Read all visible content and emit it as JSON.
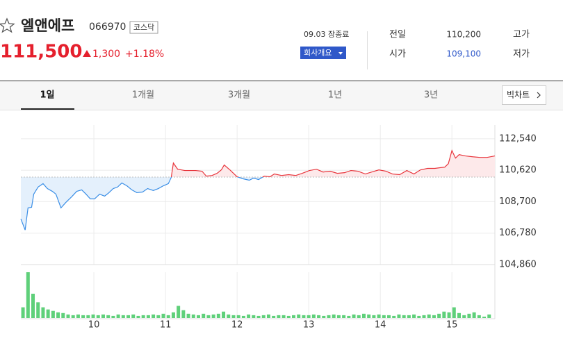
{
  "header": {
    "name": "엘앤에프",
    "code": "066970",
    "market": "코스닥",
    "price": "111,500",
    "change": "1,300",
    "change_rate": "+1.18%",
    "time": "09.03 장종료",
    "company_button": "회사개요",
    "info": [
      {
        "label": "전일",
        "value": "110,200"
      },
      {
        "label": "고가",
        "value": ""
      },
      {
        "label": "시가",
        "value": "109,100"
      },
      {
        "label": "저가",
        "value": ""
      }
    ]
  },
  "tabs": [
    "1일",
    "1개월",
    "3개월",
    "1년",
    "3년"
  ],
  "big_chart": "빅차트",
  "chart_data": {
    "type": "line",
    "x": [
      8.98,
      9.04,
      9.08,
      9.13,
      9.16,
      9.22,
      9.29,
      9.35,
      9.42,
      9.47,
      9.54,
      9.61,
      9.69,
      9.76,
      9.83,
      9.89,
      9.95,
      10.01,
      10.08,
      10.15,
      10.2,
      10.27,
      10.33,
      10.39,
      10.46,
      10.53,
      10.6,
      10.68,
      10.75,
      10.83,
      10.9,
      10.97,
      11.04,
      11.08,
      11.11,
      11.17,
      11.27,
      11.42,
      11.51,
      11.57,
      11.65,
      11.72,
      11.78,
      11.82,
      11.9,
      12.0,
      12.09,
      12.17,
      12.23,
      12.3,
      12.38,
      12.46,
      12.52,
      12.62,
      12.72,
      12.82,
      12.91,
      13.01,
      13.11,
      13.2,
      13.3,
      13.4,
      13.5,
      13.59,
      13.69,
      13.79,
      13.88,
      13.98,
      14.08,
      14.17,
      14.27,
      14.37,
      14.47,
      14.56,
      14.66,
      14.76,
      14.9,
      14.95,
      15.0,
      15.05,
      15.1,
      15.19,
      15.29,
      15.39,
      15.49,
      15.6
    ],
    "values": [
      107650,
      106970,
      108320,
      108360,
      109160,
      109590,
      109800,
      109500,
      109330,
      109160,
      108320,
      108660,
      109000,
      109330,
      109420,
      109160,
      108870,
      108870,
      109160,
      109040,
      109210,
      109500,
      109590,
      109840,
      109670,
      109420,
      109250,
      109290,
      109500,
      109380,
      109500,
      109670,
      109800,
      110180,
      111060,
      110680,
      110600,
      110600,
      110560,
      110260,
      110300,
      110430,
      110640,
      110940,
      110640,
      110220,
      110090,
      110010,
      110140,
      110050,
      110260,
      110220,
      110390,
      110300,
      110350,
      110300,
      110430,
      110600,
      110680,
      110510,
      110560,
      110430,
      110470,
      110600,
      110560,
      110390,
      110510,
      110640,
      110560,
      110390,
      110350,
      110600,
      110390,
      110640,
      110730,
      110730,
      110810,
      111020,
      111820,
      111360,
      111570,
      111490,
      111440,
      111400,
      111400,
      111490
    ],
    "baseline": 110200,
    "color_up": "#e8343b",
    "color_down": "#3a8ee6",
    "fill_up": "#fde9ea",
    "fill_down": "#e4f0fc",
    "xlim": [
      8.98,
      15.6
    ],
    "xticks": [
      10,
      11,
      12,
      13,
      14,
      15
    ],
    "ylim": [
      104860,
      113380
    ],
    "yticks": [
      {
        "value": 104860,
        "label": "104,860"
      },
      {
        "value": 106780,
        "label": "106,780"
      },
      {
        "value": 108700,
        "label": "108,700"
      },
      {
        "value": 110620,
        "label": "110,620"
      },
      {
        "value": 112540,
        "label": "112,540"
      }
    ],
    "grid": true,
    "volume": {
      "color": "#5fd07a",
      "x": [
        9.01,
        9.08,
        9.15,
        9.22,
        9.29,
        9.36,
        9.43,
        9.5,
        9.57,
        9.64,
        9.71,
        9.78,
        9.85,
        9.92,
        9.99,
        10.06,
        10.13,
        10.2,
        10.27,
        10.34,
        10.41,
        10.48,
        10.55,
        10.62,
        10.69,
        10.76,
        10.83,
        10.9,
        10.97,
        11.04,
        11.11,
        11.18,
        11.25,
        11.32,
        11.39,
        11.46,
        11.53,
        11.6,
        11.67,
        11.74,
        11.81,
        11.88,
        11.95,
        12.02,
        12.09,
        12.16,
        12.23,
        12.3,
        12.37,
        12.44,
        12.51,
        12.58,
        12.65,
        12.72,
        12.79,
        12.86,
        12.93,
        13.0,
        13.07,
        13.14,
        13.21,
        13.28,
        13.35,
        13.42,
        13.49,
        13.56,
        13.63,
        13.7,
        13.77,
        13.84,
        13.91,
        13.98,
        14.05,
        14.12,
        14.19,
        14.26,
        14.33,
        14.4,
        14.47,
        14.54,
        14.61,
        14.68,
        14.75,
        14.82,
        14.89,
        14.96,
        15.03,
        15.1,
        15.17,
        15.24,
        15.31,
        15.38,
        15.45,
        15.52
      ],
      "values": [
        15,
        64,
        34,
        22,
        15,
        12,
        10,
        8,
        7,
        5,
        4,
        5,
        4,
        4,
        5,
        4,
        5,
        4,
        3,
        5,
        4,
        4,
        5,
        3,
        4,
        4,
        5,
        4,
        6,
        4,
        8,
        17,
        11,
        6,
        5,
        4,
        6,
        4,
        5,
        6,
        9,
        5,
        4,
        4,
        3,
        5,
        4,
        3,
        4,
        5,
        3,
        4,
        4,
        3,
        4,
        5,
        4,
        4,
        5,
        4,
        3,
        4,
        5,
        4,
        4,
        3,
        5,
        4,
        6,
        5,
        4,
        5,
        4,
        4,
        3,
        5,
        4,
        4,
        5,
        3,
        4,
        5,
        4,
        6,
        9,
        8,
        15,
        7,
        4,
        6,
        8,
        4,
        2,
        5
      ]
    }
  }
}
